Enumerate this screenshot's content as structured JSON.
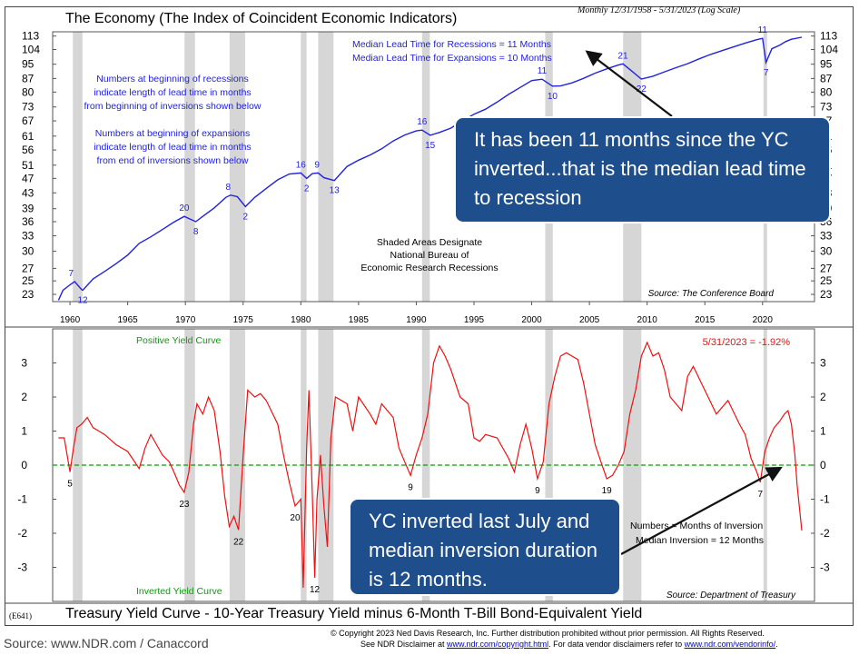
{
  "header": {
    "title_top": "The Economy (The Index of Coincident Economic Indicators)",
    "subtitle_top": "Monthly 12/31/1958 - 5/31/2023 (Log Scale)",
    "title_bottom": "Treasury Yield Curve - 10-Year Treasury Yield minus 6-Month T-Bill Bond-Equivalent Yield",
    "code": "(E641)"
  },
  "footer": {
    "copyright": "© Copyright 2023 Ned Davis Research, Inc.  Further distribution prohibited without prior permission.  All Rights Reserved.",
    "disclaimer_prefix": "See NDR Disclaimer at ",
    "disclaimer_link1": "www.ndr.com/copyright.html",
    "disclaimer_mid": ".  For data vendor disclaimers refer to ",
    "disclaimer_link2": "www.ndr.com/vendorinfo/",
    "disclaimer_suffix": ".",
    "source": "Source: www.NDR.com / Canaccord"
  },
  "callouts": {
    "top": "It has been 11 months since the YC inverted...that is the median lead time to recession",
    "bottom": "YC inverted last July and median inversion duration is 12 months."
  },
  "colors": {
    "economy_line": "#2222dd",
    "yield_line": "#ee1111",
    "zero_line": "#119911",
    "recession_shade": "#d6d6d6",
    "callout_bg": "#1f4e8c",
    "annotation_blue": "#2222dd",
    "date_red": "#ee1111",
    "label_green": "#119911"
  },
  "chart_data": [
    {
      "type": "line",
      "title": "The Economy (The Index of Coincident Economic Indicators)",
      "scale": "log",
      "y_ticks": [
        23,
        25,
        27,
        30,
        33,
        36,
        39,
        43,
        47,
        51,
        56,
        61,
        67,
        73,
        80,
        87,
        95,
        104,
        113
      ],
      "ylim": [
        22,
        116
      ],
      "x_ticks": [
        1960,
        1965,
        1970,
        1975,
        1980,
        1985,
        1990,
        1995,
        2000,
        2005,
        2010,
        2015,
        2020
      ],
      "xlim": [
        1958.5,
        2024.5
      ],
      "series": [
        {
          "x": [
            1959.0,
            1959.4,
            1960.0,
            1960.4,
            1961.0,
            1961.1,
            1962.0,
            1963.0,
            1964.0,
            1965.0,
            1966.0,
            1967.0,
            1968.0,
            1969.0,
            1969.9,
            1970.9,
            1971.5,
            1972.5,
            1973.5,
            1973.9,
            1974.5,
            1975.2,
            1976.0,
            1977.0,
            1978.0,
            1979.0,
            1980.0,
            1980.5,
            1981.0,
            1981.5,
            1982.0,
            1982.9,
            1984.0,
            1985.0,
            1986.0,
            1987.0,
            1988.0,
            1989.0,
            1990.0,
            1990.5,
            1991.2,
            1992.0,
            1993.0,
            1994.0,
            1995.0,
            1996.0,
            1997.0,
            1998.0,
            1999.0,
            2000.0,
            2000.9,
            2001.8,
            2002.5,
            2003.5,
            2004.5,
            2005.5,
            2006.5,
            2007.5,
            2007.9,
            2008.5,
            2009.5,
            2010.5,
            2011.5,
            2012.5,
            2013.5,
            2014.5,
            2015.5,
            2016.5,
            2017.5,
            2018.5,
            2019.5,
            2020.0,
            2020.3,
            2020.8,
            2021.5,
            2022.0,
            2022.5,
            2023.4
          ],
          "values": [
            22.2,
            23.6,
            24.4,
            24.9,
            23.7,
            23.6,
            25.3,
            26.5,
            27.8,
            29.3,
            31.5,
            32.8,
            34.3,
            35.9,
            37.2,
            36.0,
            37.2,
            39.2,
            41.8,
            42.4,
            42.0,
            39.5,
            41.8,
            44.2,
            46.6,
            48.3,
            48.6,
            47.0,
            48.4,
            48.6,
            47.2,
            46.4,
            50.6,
            52.6,
            54.3,
            56.4,
            59.2,
            61.4,
            63.0,
            63.3,
            61.3,
            62.4,
            64.1,
            67.0,
            69.8,
            72.0,
            75.2,
            78.9,
            82.3,
            85.9,
            86.6,
            83.0,
            83.1,
            84.7,
            87.1,
            89.9,
            92.3,
            94.5,
            95.2,
            92.0,
            86.7,
            88.2,
            90.6,
            93.0,
            95.3,
            98.2,
            100.9,
            103.3,
            105.7,
            108.2,
            110.5,
            111.4,
            96.0,
            104.5,
            106.9,
            109.2,
            110.8,
            112.2
          ]
        }
      ],
      "recessions": [
        [
          1960.25,
          1961.08
        ],
        [
          1969.92,
          1970.83
        ],
        [
          1973.83,
          1975.17
        ],
        [
          1980.0,
          1980.5
        ],
        [
          1981.5,
          1982.83
        ],
        [
          1990.5,
          1991.17
        ],
        [
          2001.17,
          2001.83
        ],
        [
          2007.92,
          2009.5
        ],
        [
          2020.08,
          2020.33
        ]
      ],
      "lead_labels": [
        {
          "text": "7",
          "x": 1960.1,
          "y": 24.9,
          "pos": "above"
        },
        {
          "text": "12",
          "x": 1961.1,
          "y": 23.6,
          "pos": "below"
        },
        {
          "text": "20",
          "x": 1969.9,
          "y": 37.2,
          "pos": "above"
        },
        {
          "text": "8",
          "x": 1970.9,
          "y": 36.0,
          "pos": "below"
        },
        {
          "text": "8",
          "x": 1973.7,
          "y": 42.4,
          "pos": "above"
        },
        {
          "text": "2",
          "x": 1975.2,
          "y": 39.5,
          "pos": "below"
        },
        {
          "text": "16",
          "x": 1980.0,
          "y": 48.6,
          "pos": "above"
        },
        {
          "text": "2",
          "x": 1980.5,
          "y": 47.0,
          "pos": "below"
        },
        {
          "text": "9",
          "x": 1981.4,
          "y": 48.6,
          "pos": "above"
        },
        {
          "text": "13",
          "x": 1982.9,
          "y": 46.4,
          "pos": "below"
        },
        {
          "text": "16",
          "x": 1990.5,
          "y": 63.3,
          "pos": "above"
        },
        {
          "text": "15",
          "x": 1991.2,
          "y": 61.3,
          "pos": "below"
        },
        {
          "text": "11",
          "x": 2000.9,
          "y": 86.6,
          "pos": "above"
        },
        {
          "text": "10",
          "x": 2001.8,
          "y": 83.0,
          "pos": "below"
        },
        {
          "text": "21",
          "x": 2007.9,
          "y": 95.2,
          "pos": "above"
        },
        {
          "text": "22",
          "x": 2009.5,
          "y": 86.7,
          "pos": "below"
        },
        {
          "text": "11",
          "x": 2020.0,
          "y": 111.4,
          "pos": "above"
        },
        {
          "text": "7",
          "x": 2020.3,
          "y": 96.0,
          "pos": "below"
        }
      ],
      "annotations": {
        "median_recession": "Median Lead Time for Recessions = 11 Months",
        "median_expansion": "Median Lead Time for Expansions = 10 Months",
        "note1": [
          "Numbers at beginning of recessions",
          "indicate length of lead time in months",
          "from beginning of inversions shown below"
        ],
        "note2": [
          "Numbers at beginning of expansions",
          "indicate length of lead time in months",
          "from end of inversions shown below"
        ],
        "shaded": [
          "Shaded Areas Designate",
          "National Bureau of",
          "Economic Research Recessions"
        ],
        "source": "Source: The Conference Board"
      }
    },
    {
      "type": "line",
      "title": "Treasury Yield Curve - 10-Year Treasury Yield minus 6-Month T-Bill Bond-Equivalent Yield",
      "y_ticks": [
        -3,
        -2,
        -1,
        0,
        1,
        2,
        3
      ],
      "ylim": [
        -4,
        4
      ],
      "xlim": [
        1958.5,
        2024.5
      ],
      "series": [
        {
          "x": [
            1959.0,
            1959.5,
            1960.0,
            1960.3,
            1960.6,
            1961.0,
            1961.5,
            1962.0,
            1962.5,
            1963.0,
            1964.0,
            1965.0,
            1966.0,
            1966.5,
            1967.0,
            1967.5,
            1968.0,
            1968.6,
            1969.0,
            1969.5,
            1969.9,
            1970.3,
            1970.7,
            1971.0,
            1971.5,
            1972.0,
            1972.5,
            1973.0,
            1973.4,
            1973.8,
            1974.2,
            1974.6,
            1975.0,
            1975.4,
            1976.0,
            1976.5,
            1977.0,
            1978.0,
            1978.5,
            1979.0,
            1979.5,
            1980.0,
            1980.2,
            1980.5,
            1980.7,
            1981.0,
            1981.2,
            1981.4,
            1981.7,
            1982.0,
            1982.3,
            1982.6,
            1983.0,
            1984.0,
            1984.5,
            1985.0,
            1986.0,
            1986.5,
            1987.0,
            1988.0,
            1988.5,
            1989.0,
            1989.5,
            1990.0,
            1990.5,
            1991.0,
            1991.5,
            1992.0,
            1992.5,
            1993.0,
            1993.8,
            1994.5,
            1995.0,
            1995.5,
            1996.0,
            1997.0,
            1998.0,
            1998.5,
            1999.0,
            1999.5,
            2000.0,
            2000.5,
            2001.0,
            2001.5,
            2002.0,
            2002.5,
            2003.0,
            2004.0,
            2004.5,
            2005.0,
            2005.5,
            2006.0,
            2006.5,
            2007.0,
            2007.5,
            2008.0,
            2008.5,
            2009.0,
            2009.5,
            2010.0,
            2010.5,
            2011.0,
            2011.5,
            2012.0,
            2013.0,
            2013.5,
            2014.0,
            2015.0,
            2016.0,
            2017.0,
            2018.0,
            2018.5,
            2019.0,
            2019.5,
            2019.8,
            2020.2,
            2020.6,
            2021.0,
            2021.5,
            2021.9,
            2022.2,
            2022.5,
            2022.8,
            2023.0,
            2023.4
          ],
          "values": [
            0.8,
            0.8,
            -0.2,
            0.5,
            1.1,
            1.2,
            1.4,
            1.1,
            1.0,
            0.9,
            0.6,
            0.4,
            -0.1,
            0.5,
            0.9,
            0.6,
            0.3,
            0.1,
            -0.2,
            -0.6,
            -0.8,
            -0.2,
            1.2,
            1.8,
            1.5,
            2.0,
            1.6,
            0.4,
            -0.9,
            -1.8,
            -1.5,
            -1.9,
            0.3,
            2.2,
            2.0,
            2.1,
            1.9,
            1.2,
            0.3,
            -0.5,
            -1.2,
            -1.0,
            -3.6,
            0.5,
            2.2,
            -0.9,
            -3.3,
            -1.0,
            0.3,
            -1.2,
            -2.4,
            0.8,
            2.0,
            1.8,
            1.0,
            2.0,
            1.5,
            1.2,
            1.8,
            1.4,
            0.5,
            0.1,
            -0.3,
            0.3,
            0.8,
            1.5,
            3.0,
            3.5,
            3.2,
            2.8,
            2.0,
            1.8,
            0.8,
            0.7,
            0.9,
            0.8,
            0.2,
            -0.2,
            0.6,
            1.2,
            0.5,
            -0.4,
            0.1,
            1.8,
            2.6,
            3.2,
            3.3,
            3.1,
            2.4,
            1.5,
            0.6,
            0.1,
            -0.4,
            -0.3,
            0.0,
            0.4,
            1.5,
            2.2,
            3.2,
            3.6,
            3.2,
            3.3,
            2.8,
            2.0,
            1.6,
            2.6,
            2.9,
            2.2,
            1.5,
            1.9,
            1.2,
            0.9,
            0.2,
            -0.2,
            -0.5,
            0.4,
            0.8,
            1.1,
            1.3,
            1.5,
            1.6,
            1.2,
            0.3,
            -0.6,
            -1.92
          ]
        }
      ],
      "inversion_labels": [
        {
          "text": "5",
          "x": 1960.0,
          "y": -0.2
        },
        {
          "text": "23",
          "x": 1969.9,
          "y": -0.8
        },
        {
          "text": "22",
          "x": 1974.6,
          "y": -1.9
        },
        {
          "text": "20",
          "x": 1979.5,
          "y": -1.2
        },
        {
          "text": "12",
          "x": 1981.2,
          "y": -3.3
        },
        {
          "text": "9",
          "x": 1989.5,
          "y": -0.3
        },
        {
          "text": "9",
          "x": 2000.5,
          "y": -0.4
        },
        {
          "text": "19",
          "x": 2006.5,
          "y": -0.4
        },
        {
          "text": "7",
          "x": 2019.8,
          "y": -0.5
        }
      ],
      "annotations": {
        "positive": "Positive Yield Curve",
        "inverted": "Inverted Yield Curve",
        "latest": "5/31/2023 = -1.92%",
        "legend1": "Numbers = Months of Inversion",
        "legend2": "Median Inversion = 12 Months",
        "source": "Source: Department of Treasury"
      }
    }
  ]
}
